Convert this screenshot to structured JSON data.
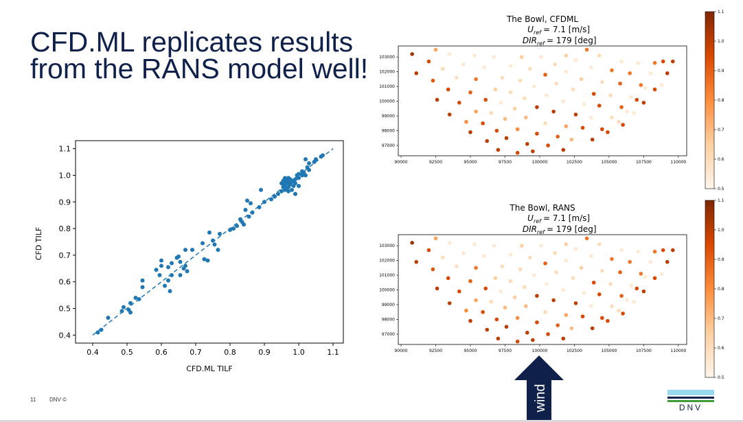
{
  "slide": {
    "title_line1": "CFD.ML replicates results",
    "title_line2": "from the RANS model well!",
    "page_number": "11",
    "footer_brand": "DNV ©",
    "logo_text": "DNV",
    "wind_label": "wind",
    "colors": {
      "navy": "#0f204b",
      "point_blue": "#1f77b4",
      "logo_light_blue": "#99d9f0",
      "logo_green": "#3f9c35"
    }
  },
  "chart_data": [
    {
      "type": "scatter",
      "title": "",
      "xlabel": "CFD.ML TILF",
      "ylabel": "CFD TILF",
      "xlim": [
        0.35,
        1.13
      ],
      "ylim": [
        0.37,
        1.13
      ],
      "xticks": [
        0.4,
        0.5,
        0.6,
        0.7,
        0.8,
        0.9,
        1.0,
        1.1
      ],
      "yticks": [
        0.4,
        0.5,
        0.6,
        0.7,
        0.8,
        0.9,
        1.0,
        1.1
      ],
      "reference_line": {
        "style": "dashed",
        "from": [
          0.4,
          0.4
        ],
        "to": [
          1.1,
          1.1
        ]
      },
      "points": [
        [
          0.415,
          0.41
        ],
        [
          0.425,
          0.42
        ],
        [
          0.445,
          0.465
        ],
        [
          0.485,
          0.49
        ],
        [
          0.49,
          0.505
        ],
        [
          0.505,
          0.495
        ],
        [
          0.51,
          0.52
        ],
        [
          0.51,
          0.485
        ],
        [
          0.525,
          0.54
        ],
        [
          0.535,
          0.535
        ],
        [
          0.545,
          0.58
        ],
        [
          0.545,
          0.605
        ],
        [
          0.585,
          0.645
        ],
        [
          0.595,
          0.625
        ],
        [
          0.6,
          0.66
        ],
        [
          0.6,
          0.68
        ],
        [
          0.61,
          0.585
        ],
        [
          0.62,
          0.605
        ],
        [
          0.62,
          0.655
        ],
        [
          0.625,
          0.565
        ],
        [
          0.63,
          0.625
        ],
        [
          0.63,
          0.67
        ],
        [
          0.645,
          0.69
        ],
        [
          0.65,
          0.695
        ],
        [
          0.655,
          0.675
        ],
        [
          0.655,
          0.625
        ],
        [
          0.665,
          0.65
        ],
        [
          0.67,
          0.66
        ],
        [
          0.67,
          0.72
        ],
        [
          0.675,
          0.64
        ],
        [
          0.69,
          0.72
        ],
        [
          0.72,
          0.745
        ],
        [
          0.725,
          0.685
        ],
        [
          0.735,
          0.68
        ],
        [
          0.74,
          0.785
        ],
        [
          0.75,
          0.755
        ],
        [
          0.755,
          0.74
        ],
        [
          0.765,
          0.72
        ],
        [
          0.77,
          0.78
        ],
        [
          0.8,
          0.795
        ],
        [
          0.81,
          0.8
        ],
        [
          0.82,
          0.81
        ],
        [
          0.83,
          0.835
        ],
        [
          0.835,
          0.825
        ],
        [
          0.84,
          0.815
        ],
        [
          0.845,
          0.87
        ],
        [
          0.85,
          0.905
        ],
        [
          0.855,
          0.845
        ],
        [
          0.86,
          0.895
        ],
        [
          0.865,
          0.86
        ],
        [
          0.885,
          0.88
        ],
        [
          0.89,
          0.945
        ],
        [
          0.9,
          0.9
        ],
        [
          0.92,
          0.91
        ],
        [
          0.93,
          0.92
        ],
        [
          0.94,
          0.93
        ],
        [
          0.95,
          0.94
        ],
        [
          0.955,
          0.955
        ],
        [
          0.955,
          0.965
        ],
        [
          0.96,
          0.975
        ],
        [
          0.96,
          0.96
        ],
        [
          0.965,
          0.95
        ],
        [
          0.965,
          0.98
        ],
        [
          0.97,
          0.955
        ],
        [
          0.97,
          0.97
        ],
        [
          0.975,
          0.965
        ],
        [
          0.975,
          0.985
        ],
        [
          0.98,
          0.975
        ],
        [
          0.985,
          0.96
        ],
        [
          0.99,
          0.97
        ],
        [
          0.95,
          0.97
        ],
        [
          0.96,
          0.99
        ],
        [
          0.97,
          0.99
        ],
        [
          0.99,
          0.985
        ],
        [
          1.0,
          0.99
        ],
        [
          0.99,
          0.93
        ],
        [
          1.0,
          0.96
        ],
        [
          1.0,
          1.005
        ],
        [
          1.01,
          1.0
        ],
        [
          1.01,
          1.015
        ],
        [
          1.02,
          1.0
        ],
        [
          1.02,
          1.06
        ],
        [
          1.03,
          1.02
        ],
        [
          1.03,
          1.045
        ],
        [
          1.045,
          1.05
        ],
        [
          1.05,
          1.06
        ],
        [
          1.065,
          1.07
        ],
        [
          1.07,
          1.075
        ],
        [
          0.97,
          0.94
        ],
        [
          0.98,
          0.945
        ],
        [
          0.955,
          0.98
        ],
        [
          0.965,
          0.97
        ],
        [
          0.975,
          0.975
        ],
        [
          0.985,
          0.98
        ],
        [
          0.995,
          1.0
        ],
        [
          0.96,
          0.945
        ],
        [
          1.015,
          1.01
        ],
        [
          1.025,
          1.03
        ]
      ]
    },
    {
      "type": "scatter",
      "title": "The Bowl, CFDML",
      "subtitle_uref_value": "= 7.1 [m/s]",
      "subtitle_dir_value": "= 179 [deg]",
      "xlim": [
        89800,
        110600
      ],
      "ylim": [
        96300,
        103750
      ],
      "xticks": [
        90000,
        92500,
        95000,
        97500,
        100000,
        102500,
        105000,
        107500,
        110000
      ],
      "yticks": [
        97000,
        98000,
        99000,
        100000,
        101000,
        102000,
        103000
      ],
      "colorbar": {
        "colormap": "Oranges",
        "vmin": 0.5,
        "vmax": 1.1,
        "ticks": [
          0.5,
          0.6,
          0.7,
          0.8,
          0.9,
          1.0,
          1.1
        ]
      }
    },
    {
      "type": "scatter",
      "title": "The Bowl, RANS",
      "subtitle_uref_value": "= 7.1 [m/s]",
      "subtitle_dir_value": "= 179 [deg]",
      "xlim": [
        89800,
        110600
      ],
      "ylim": [
        96300,
        103750
      ],
      "xticks": [
        90000,
        92500,
        95000,
        97500,
        100000,
        102500,
        105000,
        107500,
        110000
      ],
      "yticks": [
        97000,
        98000,
        99000,
        100000,
        101000,
        102000,
        103000
      ],
      "colorbar": {
        "colormap": "Oranges",
        "vmin": 0.5,
        "vmax": 1.1,
        "ticks": [
          0.5,
          0.6,
          0.7,
          0.8,
          0.9,
          1.0,
          1.1
        ]
      }
    }
  ],
  "turbine_points": [
    [
      90800,
      103200,
      1.05
    ],
    [
      91100,
      101900,
      1.0
    ],
    [
      92000,
      102700,
      0.95
    ],
    [
      92500,
      103500,
      0.75
    ],
    [
      92300,
      101400,
      0.92
    ],
    [
      93000,
      102200,
      0.6
    ],
    [
      93500,
      103200,
      0.55
    ],
    [
      92600,
      100100,
      1.0
    ],
    [
      93400,
      100800,
      0.95
    ],
    [
      94000,
      101600,
      0.58
    ],
    [
      94500,
      102500,
      0.55
    ],
    [
      95300,
      103100,
      0.55
    ],
    [
      93500,
      99100,
      1.0
    ],
    [
      94200,
      99900,
      0.95
    ],
    [
      95000,
      100600,
      0.9
    ],
    [
      95400,
      101500,
      0.85
    ],
    [
      96000,
      102300,
      0.55
    ],
    [
      96700,
      103000,
      0.55
    ],
    [
      94700,
      98600,
      0.8
    ],
    [
      95400,
      99300,
      0.75
    ],
    [
      96100,
      100100,
      0.95
    ],
    [
      96800,
      100800,
      0.65
    ],
    [
      97300,
      101600,
      0.6
    ],
    [
      97900,
      102400,
      0.55
    ],
    [
      98700,
      103000,
      0.65
    ],
    [
      95000,
      97900,
      1.0
    ],
    [
      95900,
      98500,
      0.95
    ],
    [
      96500,
      99200,
      0.6
    ],
    [
      97200,
      99900,
      0.55
    ],
    [
      97900,
      100600,
      0.6
    ],
    [
      98600,
      101400,
      0.6
    ],
    [
      99300,
      102200,
      0.6
    ],
    [
      100100,
      103000,
      0.55
    ],
    [
      96200,
      97300,
      1.0
    ],
    [
      96900,
      98000,
      0.95
    ],
    [
      97500,
      98800,
      0.7
    ],
    [
      98200,
      99500,
      0.65
    ],
    [
      98900,
      100200,
      0.6
    ],
    [
      99600,
      101000,
      0.55
    ],
    [
      100400,
      101800,
      0.9
    ],
    [
      101100,
      102500,
      0.6
    ],
    [
      101900,
      103100,
      0.65
    ],
    [
      97000,
      96700,
      1.0
    ],
    [
      97600,
      97500,
      1.0
    ],
    [
      98400,
      98100,
      0.8
    ],
    [
      99000,
      98900,
      0.7
    ],
    [
      99800,
      99600,
      1.0
    ],
    [
      100500,
      100400,
      0.55
    ],
    [
      101200,
      101200,
      0.6
    ],
    [
      101900,
      102000,
      0.55
    ],
    [
      102600,
      102800,
      0.55
    ],
    [
      103400,
      103500,
      0.85
    ],
    [
      98400,
      96500,
      0.95
    ],
    [
      99100,
      97100,
      1.0
    ],
    [
      99800,
      97800,
      0.95
    ],
    [
      100400,
      98500,
      0.6
    ],
    [
      101000,
      99300,
      1.0
    ],
    [
      101700,
      100000,
      0.55
    ],
    [
      102400,
      100800,
      0.6
    ],
    [
      103000,
      101500,
      0.65
    ],
    [
      103700,
      102300,
      0.55
    ],
    [
      104300,
      103100,
      0.6
    ],
    [
      99500,
      96600,
      1.0
    ],
    [
      100600,
      97000,
      0.95
    ],
    [
      101300,
      97600,
      0.9
    ],
    [
      101900,
      98300,
      0.75
    ],
    [
      102600,
      99100,
      1.0
    ],
    [
      103200,
      99800,
      0.55
    ],
    [
      103900,
      100500,
      0.95
    ],
    [
      104500,
      101300,
      0.6
    ],
    [
      105200,
      102100,
      0.85
    ],
    [
      105900,
      102700,
      0.55
    ],
    [
      101700,
      96700,
      1.0
    ],
    [
      102300,
      97400,
      0.7
    ],
    [
      103100,
      98200,
      0.95
    ],
    [
      103700,
      98900,
      0.55
    ],
    [
      104300,
      99700,
      0.95
    ],
    [
      105100,
      100400,
      0.6
    ],
    [
      105800,
      101200,
      0.9
    ],
    [
      106500,
      101900,
      0.85
    ],
    [
      107100,
      102600,
      0.55
    ],
    [
      103800,
      97400,
      1.0
    ],
    [
      104500,
      98100,
      0.95
    ],
    [
      105200,
      98900,
      0.6
    ],
    [
      105900,
      99600,
      0.9
    ],
    [
      106600,
      100300,
      0.55
    ],
    [
      107300,
      101100,
      0.85
    ],
    [
      108000,
      101900,
      0.55
    ],
    [
      104900,
      97900,
      0.95
    ],
    [
      105700,
      98600,
      0.6
    ],
    [
      106300,
      99300,
      0.55
    ],
    [
      107000,
      100100,
      0.95
    ],
    [
      107600,
      100900,
      0.55
    ],
    [
      108300,
      102600,
      0.85
    ],
    [
      106000,
      98400,
      0.95
    ],
    [
      106800,
      99200,
      0.55
    ],
    [
      107500,
      99900,
      1.0
    ],
    [
      108300,
      100800,
      0.95
    ],
    [
      109200,
      101900,
      1.0
    ],
    [
      109600,
      102700,
      1.0
    ],
    [
      108900,
      102700,
      0.95
    ],
    [
      108800,
      101100,
      0.55
    ]
  ]
}
